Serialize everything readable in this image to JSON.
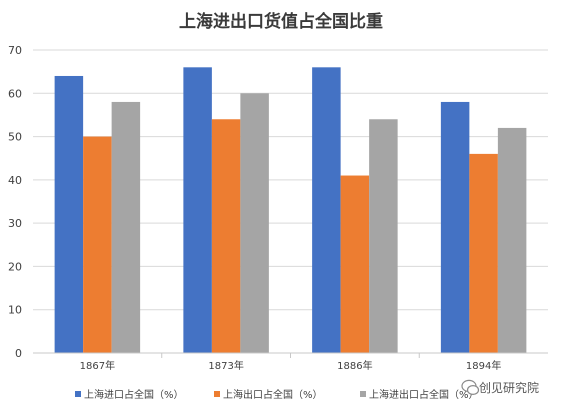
{
  "chart_data": {
    "type": "bar",
    "title": "上海进出口货值占全国比重",
    "categories": [
      "1867年",
      "1873年",
      "1886年",
      "1894年"
    ],
    "series": [
      {
        "name": "上海进口占全国（%）",
        "color": "#4472C4",
        "values": [
          64,
          66,
          66,
          58
        ]
      },
      {
        "name": "上海出口占全国（%）",
        "color": "#ED7D31",
        "values": [
          50,
          54,
          41,
          46
        ]
      },
      {
        "name": "上海进出口占全国（%）",
        "color": "#A5A5A5",
        "values": [
          58,
          60,
          54,
          52
        ]
      }
    ],
    "ylim": [
      0,
      70
    ],
    "yticks": [
      0,
      10,
      20,
      30,
      40,
      50,
      60,
      70
    ],
    "grid": true,
    "legend_position": "bottom"
  },
  "watermark": {
    "text": "创见研究院",
    "icon": "wechat-bubble-icon"
  }
}
